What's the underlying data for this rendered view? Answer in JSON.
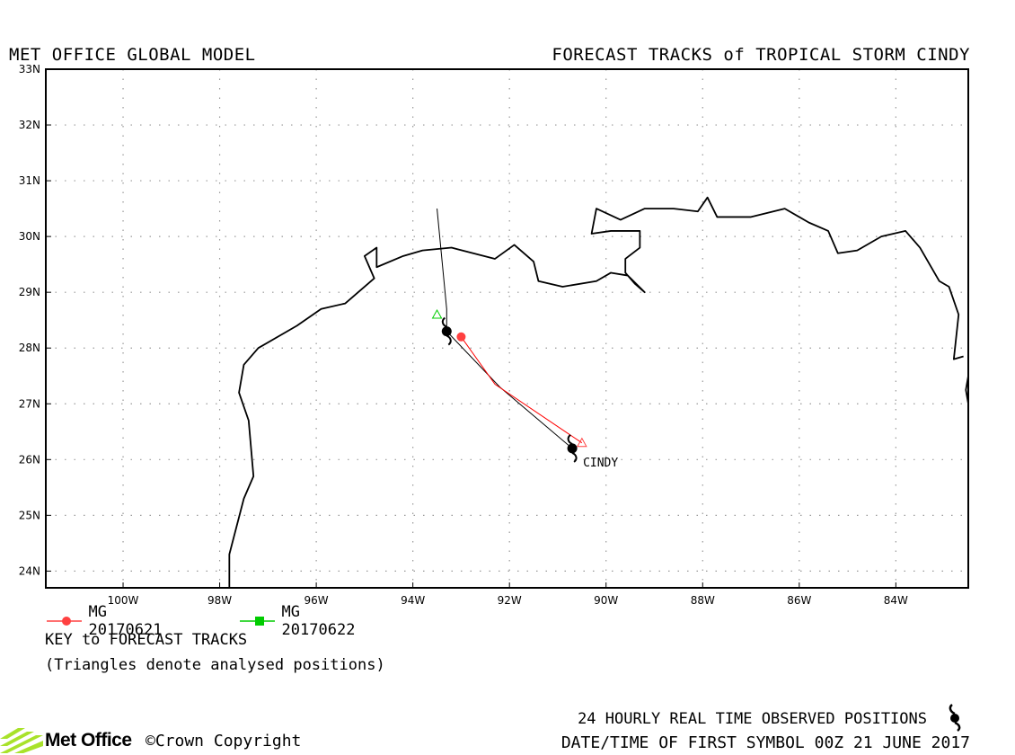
{
  "header": {
    "left_title": "MET OFFICE GLOBAL MODEL",
    "right_title": "FORECAST TRACKS of TROPICAL STORM CINDY"
  },
  "map": {
    "lon_range": [
      -101.6,
      -82.5
    ],
    "lat_range": [
      23.7,
      33.0
    ],
    "lon_ticks": [
      {
        "value": -100,
        "label": "100W"
      },
      {
        "value": -98,
        "label": "98W"
      },
      {
        "value": -96,
        "label": "96W"
      },
      {
        "value": -94,
        "label": "94W"
      },
      {
        "value": -92,
        "label": "92W"
      },
      {
        "value": -90,
        "label": "90W"
      },
      {
        "value": -88,
        "label": "88W"
      },
      {
        "value": -86,
        "label": "86W"
      },
      {
        "value": -84,
        "label": "84W"
      }
    ],
    "lat_ticks": [
      {
        "value": 33,
        "label": "33N"
      },
      {
        "value": 32,
        "label": "32N"
      },
      {
        "value": 31,
        "label": "31N"
      },
      {
        "value": 30,
        "label": "30N"
      },
      {
        "value": 29,
        "label": "29N"
      },
      {
        "value": 28,
        "label": "28N"
      },
      {
        "value": 27,
        "label": "27N"
      },
      {
        "value": 26,
        "label": "26N"
      },
      {
        "value": 25,
        "label": "25N"
      },
      {
        "value": 24,
        "label": "24N"
      }
    ],
    "grid": "dotted",
    "coastline_color": "#000000",
    "coastline": [
      [
        -97.8,
        23.7
      ],
      [
        -97.8,
        24.3
      ],
      [
        -97.5,
        25.3
      ],
      [
        -97.3,
        25.7
      ],
      [
        -97.4,
        26.7
      ],
      [
        -97.6,
        27.2
      ],
      [
        -97.5,
        27.7
      ],
      [
        -97.2,
        28.0
      ],
      [
        -96.4,
        28.4
      ],
      [
        -95.9,
        28.7
      ],
      [
        -95.4,
        28.8
      ],
      [
        -94.8,
        29.25
      ],
      [
        -95.0,
        29.65
      ],
      [
        -94.75,
        29.8
      ],
      [
        -94.75,
        29.45
      ],
      [
        -94.2,
        29.65
      ],
      [
        -93.8,
        29.75
      ],
      [
        -93.2,
        29.8
      ],
      [
        -92.3,
        29.6
      ],
      [
        -91.9,
        29.85
      ],
      [
        -91.5,
        29.55
      ],
      [
        -91.4,
        29.2
      ],
      [
        -90.9,
        29.1
      ],
      [
        -90.2,
        29.2
      ],
      [
        -89.9,
        29.35
      ],
      [
        -89.55,
        29.3
      ],
      [
        -89.2,
        29.0
      ],
      [
        -89.4,
        29.15
      ],
      [
        -89.6,
        29.35
      ],
      [
        -89.6,
        29.6
      ],
      [
        -89.3,
        29.8
      ],
      [
        -89.3,
        30.1
      ],
      [
        -89.9,
        30.1
      ],
      [
        -90.3,
        30.05
      ],
      [
        -90.2,
        30.5
      ],
      [
        -89.7,
        30.3
      ],
      [
        -89.2,
        30.5
      ],
      [
        -88.6,
        30.5
      ],
      [
        -88.1,
        30.45
      ],
      [
        -87.9,
        30.7
      ],
      [
        -87.7,
        30.35
      ],
      [
        -87.0,
        30.35
      ],
      [
        -86.3,
        30.5
      ],
      [
        -85.8,
        30.25
      ],
      [
        -85.4,
        30.1
      ],
      [
        -85.2,
        29.7
      ],
      [
        -84.8,
        29.75
      ],
      [
        -84.3,
        30.0
      ],
      [
        -83.8,
        30.1
      ],
      [
        -83.5,
        29.8
      ],
      [
        -83.1,
        29.2
      ],
      [
        -82.9,
        29.1
      ],
      [
        -82.7,
        28.6
      ],
      [
        -82.8,
        27.8
      ],
      [
        -82.6,
        27.85
      ]
    ],
    "coastline2": [
      [
        -82.5,
        27.5
      ],
      [
        -82.55,
        27.25
      ],
      [
        -82.5,
        27.0
      ]
    ]
  },
  "tracks": [
    {
      "name": "MG 20170621",
      "color": "#ff0000",
      "marker_color": "#ff4040",
      "points": [
        [
          -93.0,
          28.2
        ],
        [
          -92.3,
          27.35
        ],
        [
          -90.5,
          26.3
        ]
      ],
      "analysed": [
        -90.5,
        26.3
      ],
      "forecast_marker": [
        -93.0,
        28.2
      ]
    },
    {
      "name": "MG 20170622",
      "color": "#00bb00",
      "marker_color": "#00cc00",
      "points": [],
      "analysed": [
        -93.5,
        28.6
      ]
    }
  ],
  "observed_track": {
    "color": "#000000",
    "points": [
      [
        -90.7,
        26.2
      ],
      [
        -92.2,
        27.3
      ],
      [
        -93.3,
        28.3
      ],
      [
        -93.3,
        28.7
      ],
      [
        -93.5,
        30.5
      ]
    ],
    "storm_symbols": [
      [
        -90.7,
        26.2
      ],
      [
        -93.3,
        28.3
      ]
    ],
    "storm_label": "CINDY"
  },
  "legend": {
    "items": [
      {
        "label": "MG 20170621",
        "color": "#ff4040",
        "marker": "circle"
      },
      {
        "label": "MG 20170622",
        "color": "#00cc00",
        "marker": "square"
      }
    ],
    "key_title": "KEY to FORECAST TRACKS",
    "key_note": "(Triangles denote analysed positions)"
  },
  "footer": {
    "observed_text": "24 HOURLY REAL TIME OBSERVED POSITIONS",
    "date_text": "DATE/TIME OF FIRST SYMBOL 00Z 21 JUNE 2017",
    "logo_text": "Met Office",
    "copyright_text": "©Crown Copyright",
    "logo_color": "#a8e22a"
  }
}
